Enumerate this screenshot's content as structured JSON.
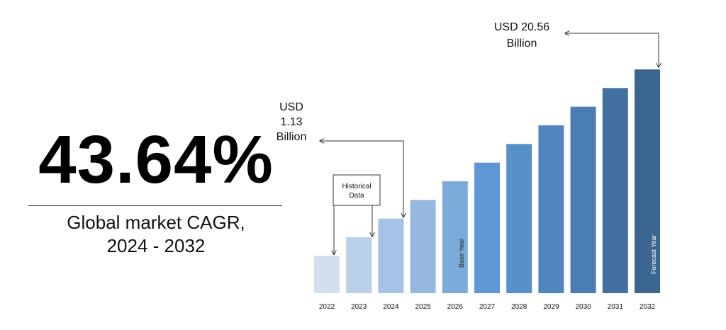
{
  "headline": {
    "cagr": "43.64%",
    "label_line1": "Global market CAGR,",
    "label_line2": "2024 - 2032"
  },
  "chart_data": {
    "type": "bar",
    "categories": [
      "2022",
      "2023",
      "2024",
      "2025",
      "2026",
      "2027",
      "2028",
      "2029",
      "2030",
      "2031",
      "2032"
    ],
    "values": [
      1.0,
      1.5,
      2.0,
      2.5,
      3.0,
      3.5,
      4.0,
      4.5,
      5.0,
      5.5,
      6.0
    ],
    "colors": [
      "#d3deee",
      "#bacfe8",
      "#a6c2e5",
      "#95b7e0",
      "#7aaad9",
      "#5e97d4",
      "#5591c8",
      "#4f86bf",
      "#4a7db4",
      "#43719f",
      "#3b6690"
    ],
    "title": "",
    "xlabel": "",
    "ylabel": "",
    "grid": false,
    "annotations": {
      "start_value": [
        "USD",
        "1.13",
        "Billion"
      ],
      "end_value": [
        "USD 20.56",
        "Billion"
      ],
      "historical": [
        "Historical",
        "Data"
      ],
      "base_year": "Base Year",
      "forecast_year": "Forecast Year"
    }
  }
}
